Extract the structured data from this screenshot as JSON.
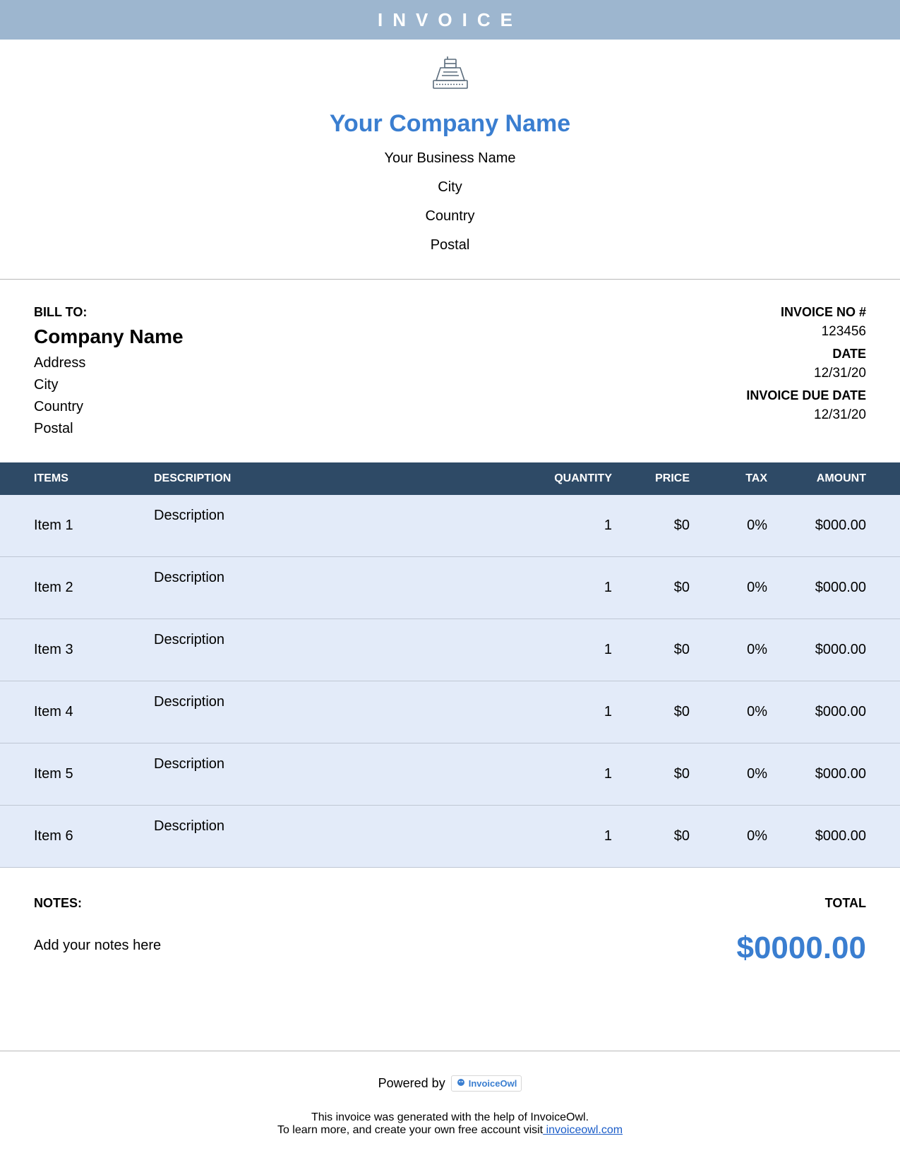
{
  "banner": {
    "title": "INVOICE"
  },
  "colors": {
    "banner_bg": "#9db6cf",
    "accent": "#3a7ed0",
    "table_header_bg": "#2e4a66",
    "row_bg": "#e3ebf9",
    "row_border": "#bfc7d4",
    "divider": "#b8b8b8"
  },
  "company": {
    "name": "Your Company Name",
    "business_name": "Your Business Name",
    "city": "City",
    "country": "Country",
    "postal": "Postal"
  },
  "bill_to": {
    "label": "BILL TO:",
    "company": "Company Name",
    "address": "Address",
    "city": "City",
    "country": "Country",
    "postal": "Postal"
  },
  "invoice_meta": {
    "number_label": "INVOICE NO #",
    "number": "123456",
    "date_label": "DATE",
    "date": "12/31/20",
    "due_label": "INVOICE DUE DATE",
    "due": "12/31/20"
  },
  "columns": {
    "items": "ITEMS",
    "description": "DESCRIPTION",
    "quantity": "QUANTITY",
    "price": "PRICE",
    "tax": "TAX",
    "amount": "AMOUNT"
  },
  "rows": [
    {
      "item": "Item 1",
      "description": "Description",
      "quantity": "1",
      "price": "$0",
      "tax": "0%",
      "amount": "$000.00"
    },
    {
      "item": "Item 2",
      "description": "Description",
      "quantity": "1",
      "price": "$0",
      "tax": "0%",
      "amount": "$000.00"
    },
    {
      "item": "Item 3",
      "description": "Description",
      "quantity": "1",
      "price": "$0",
      "tax": "0%",
      "amount": "$000.00"
    },
    {
      "item": "Item 4",
      "description": "Description",
      "quantity": "1",
      "price": "$0",
      "tax": "0%",
      "amount": "$000.00"
    },
    {
      "item": "Item 5",
      "description": "Description",
      "quantity": "1",
      "price": "$0",
      "tax": "0%",
      "amount": "$000.00"
    },
    {
      "item": "Item 6",
      "description": "Description",
      "quantity": "1",
      "price": "$0",
      "tax": "0%",
      "amount": "$000.00"
    }
  ],
  "notes": {
    "label": "NOTES:",
    "text": "Add your notes here"
  },
  "total": {
    "label": "TOTAL",
    "value": "$0000.00"
  },
  "footer": {
    "powered_by": "Powered by",
    "brand": "InvoiceOwl",
    "line1": "This invoice was generated with the help of InvoiceOwl.",
    "line2_pre": "To learn more, and create your own free account visit",
    "link_text": " invoiceowl.com"
  }
}
